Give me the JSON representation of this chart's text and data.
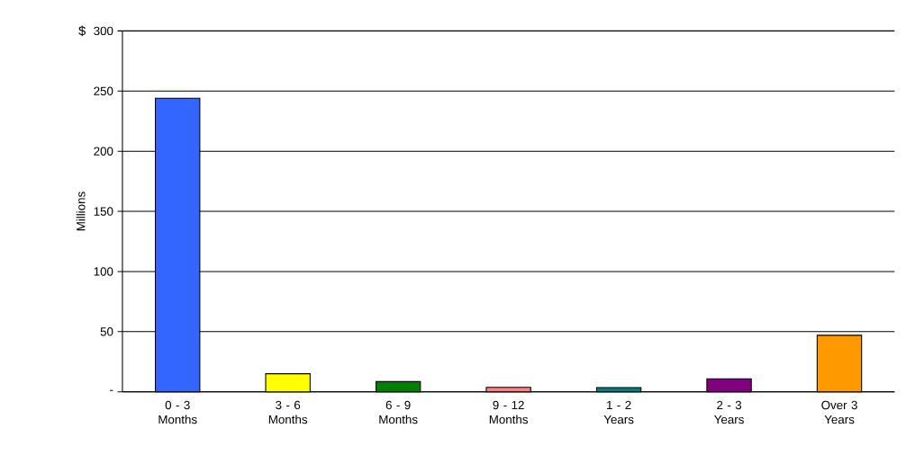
{
  "chart_data": {
    "type": "bar",
    "ylabel": "Millions",
    "annotations": [
      "$"
    ],
    "categories": [
      "0 - 3 Months",
      "3 - 6 Months",
      "6 - 9 Months",
      "9 - 12 Months",
      "1 - 2 Years",
      "2 - 3 Years",
      "Over 3 Years"
    ],
    "values": [
      244,
      15,
      8.5,
      3.7,
      3.5,
      10.8,
      47
    ],
    "colors": [
      "#3366ff",
      "#ffff00",
      "#008000",
      "#ff8080",
      "#008080",
      "#800080",
      "#ff9900"
    ],
    "ylim": [
      0,
      300
    ],
    "yticks": [
      {
        "value": 0,
        "label": "-"
      },
      50,
      100,
      150,
      200,
      250,
      300
    ],
    "grid": "y"
  }
}
